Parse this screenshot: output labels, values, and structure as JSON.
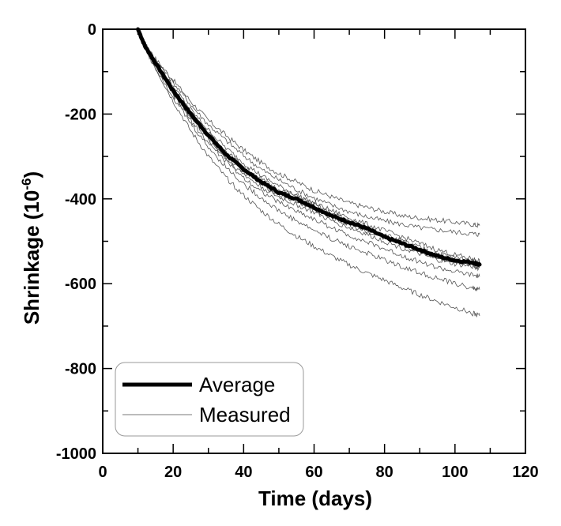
{
  "chart_data": {
    "type": "line",
    "xlabel": "Time (days)",
    "ylabel": "Shrinkage (10",
    "ylabel_exponent": "-6",
    "ylabel_close": ")",
    "xlim": [
      0,
      120
    ],
    "ylim": [
      -1000,
      0
    ],
    "x_ticks": [
      0,
      20,
      40,
      60,
      80,
      100,
      120
    ],
    "y_ticks": [
      0,
      -200,
      -400,
      -600,
      -800,
      -1000
    ],
    "x_tick_labels": [
      "0",
      "20",
      "40",
      "60",
      "80",
      "100",
      "120"
    ],
    "y_tick_labels": [
      "0",
      "-200",
      "-400",
      "-600",
      "-800",
      "-1000"
    ],
    "grid": false,
    "legend_position": "bottom-left",
    "series": [
      {
        "name": "Average",
        "style": "thick",
        "x": [
          10,
          12,
          15,
          20,
          25,
          30,
          35,
          40,
          45,
          50,
          55,
          60,
          65,
          70,
          75,
          80,
          85,
          90,
          95,
          100,
          105,
          107
        ],
        "y": [
          0,
          -40,
          -80,
          -145,
          -200,
          -250,
          -295,
          -330,
          -360,
          -385,
          -400,
          -420,
          -440,
          -455,
          -470,
          -490,
          -505,
          -520,
          -535,
          -545,
          -550,
          -555
        ]
      },
      {
        "name": "Measured",
        "style": "thin",
        "x": [
          10,
          12,
          15,
          20,
          25,
          30,
          35,
          40,
          45,
          50,
          55,
          60,
          65,
          70,
          75,
          80,
          85,
          90,
          95,
          100,
          105,
          107
        ],
        "y_sets": [
          [
            0,
            -35,
            -70,
            -120,
            -170,
            -215,
            -250,
            -285,
            -315,
            -340,
            -360,
            -380,
            -395,
            -410,
            -420,
            -430,
            -440,
            -445,
            -450,
            -455,
            -460,
            -463
          ],
          [
            0,
            -37,
            -72,
            -125,
            -178,
            -225,
            -262,
            -298,
            -330,
            -355,
            -378,
            -398,
            -415,
            -430,
            -442,
            -452,
            -460,
            -468,
            -473,
            -478,
            -482,
            -484
          ],
          [
            0,
            -38,
            -76,
            -135,
            -190,
            -238,
            -280,
            -315,
            -345,
            -370,
            -390,
            -410,
            -428,
            -445,
            -460,
            -475,
            -490,
            -505,
            -520,
            -532,
            -542,
            -546
          ],
          [
            0,
            -39,
            -78,
            -140,
            -195,
            -245,
            -288,
            -324,
            -354,
            -378,
            -394,
            -414,
            -434,
            -450,
            -466,
            -484,
            -500,
            -514,
            -528,
            -538,
            -546,
            -550
          ],
          [
            0,
            -40,
            -82,
            -148,
            -205,
            -255,
            -300,
            -336,
            -366,
            -390,
            -406,
            -426,
            -446,
            -462,
            -476,
            -494,
            -510,
            -524,
            -538,
            -548,
            -554,
            -558
          ],
          [
            0,
            -41,
            -84,
            -150,
            -208,
            -260,
            -305,
            -342,
            -372,
            -396,
            -414,
            -432,
            -452,
            -468,
            -484,
            -500,
            -516,
            -530,
            -544,
            -554,
            -560,
            -563
          ],
          [
            0,
            -42,
            -86,
            -155,
            -215,
            -268,
            -312,
            -350,
            -382,
            -408,
            -428,
            -448,
            -468,
            -486,
            -502,
            -518,
            -534,
            -548,
            -562,
            -572,
            -580,
            -583
          ],
          [
            0,
            -43,
            -88,
            -160,
            -223,
            -278,
            -325,
            -365,
            -398,
            -428,
            -452,
            -474,
            -494,
            -512,
            -528,
            -544,
            -560,
            -574,
            -588,
            -600,
            -610,
            -614
          ],
          [
            0,
            -45,
            -92,
            -170,
            -240,
            -300,
            -350,
            -392,
            -428,
            -460,
            -488,
            -512,
            -535,
            -556,
            -575,
            -592,
            -610,
            -626,
            -642,
            -656,
            -670,
            -676
          ]
        ]
      }
    ]
  }
}
